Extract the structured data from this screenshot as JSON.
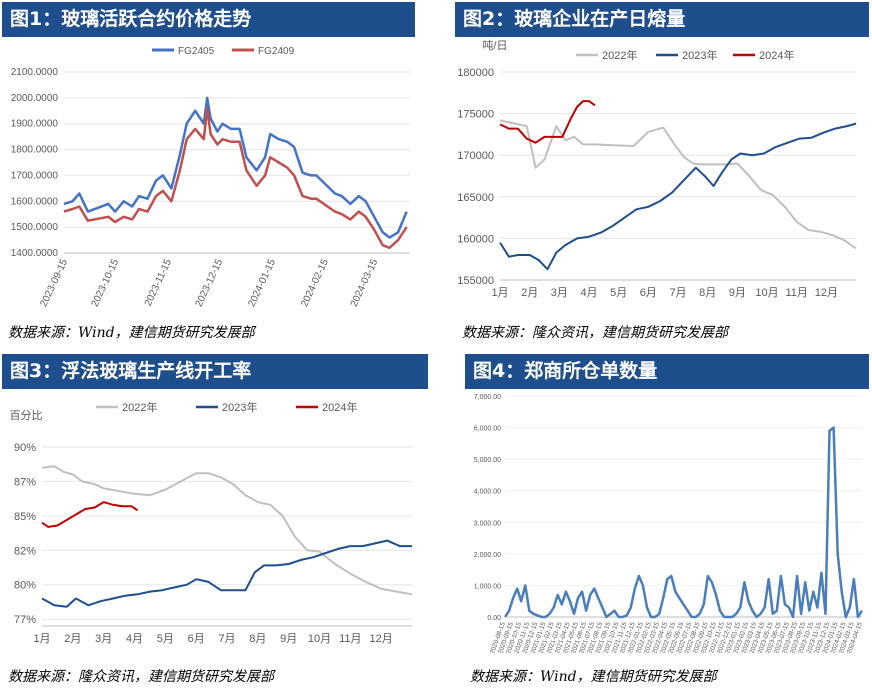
{
  "panels": {
    "p1": {
      "title": "图1：玻璃活跃合约价格走势",
      "source": "数据来源：Wind，建信期货研究发展部"
    },
    "p2": {
      "title": "图2：玻璃企业在产日熔量",
      "source": "数据来源：隆众资讯，建信期货研究发展部"
    },
    "p3": {
      "title": "图3：浮法玻璃生产线开工率",
      "source": "数据来源：隆众资讯，建信期货研究发展部"
    },
    "p4": {
      "title": "图4：郑商所仓单数量",
      "source": "数据来源：Wind，建信期货研究发展部"
    }
  },
  "chart_data": [
    {
      "type": "line",
      "title": "",
      "legend_position": "top",
      "x_tick_labels": [
        "2023-09-15",
        "2023-10-15",
        "2023-11-15",
        "2023-12-15",
        "2024-01-15",
        "2024-02-15",
        "2024-03-15"
      ],
      "ylim": [
        1400,
        2100
      ],
      "y_tick_labels": [
        "1400.0000",
        "1500.0000",
        "1600.0000",
        "1700.0000",
        "1800.0000",
        "1900.0000",
        "2000.0000",
        "2100.0000"
      ],
      "series": [
        {
          "name": "FG2405",
          "color": "#4472c4",
          "x": [
            "2023-09-13",
            "2023-09-18",
            "2023-09-22",
            "2023-09-27",
            "2023-10-09",
            "2023-10-13",
            "2023-10-18",
            "2023-10-23",
            "2023-10-27",
            "2023-11-01",
            "2023-11-06",
            "2023-11-10",
            "2023-11-15",
            "2023-11-20",
            "2023-11-24",
            "2023-11-29",
            "2023-12-04",
            "2023-12-06",
            "2023-12-08",
            "2023-12-12",
            "2023-12-15",
            "2023-12-20",
            "2023-12-25",
            "2023-12-29",
            "2024-01-04",
            "2024-01-09",
            "2024-01-12",
            "2024-01-17",
            "2024-01-22",
            "2024-01-26",
            "2024-01-31",
            "2024-02-05",
            "2024-02-08",
            "2024-02-19",
            "2024-02-23",
            "2024-02-28",
            "2024-03-04",
            "2024-03-08",
            "2024-03-13",
            "2024-03-18",
            "2024-03-22",
            "2024-03-27",
            "2024-04-01"
          ],
          "y": [
            1590,
            1600,
            1630,
            1560,
            1590,
            1560,
            1600,
            1580,
            1620,
            1610,
            1680,
            1700,
            1650,
            1780,
            1900,
            1950,
            1900,
            2000,
            1920,
            1870,
            1900,
            1880,
            1880,
            1770,
            1720,
            1770,
            1860,
            1840,
            1830,
            1810,
            1710,
            1700,
            1700,
            1630,
            1620,
            1590,
            1620,
            1600,
            1540,
            1480,
            1460,
            1480,
            1560
          ]
        },
        {
          "name": "FG2409",
          "color": "#c0504d",
          "x": [
            "2023-09-13",
            "2023-09-18",
            "2023-09-22",
            "2023-09-27",
            "2023-10-09",
            "2023-10-13",
            "2023-10-18",
            "2023-10-23",
            "2023-10-27",
            "2023-11-01",
            "2023-11-06",
            "2023-11-10",
            "2023-11-15",
            "2023-11-20",
            "2023-11-24",
            "2023-11-29",
            "2023-12-04",
            "2023-12-06",
            "2023-12-08",
            "2023-12-12",
            "2023-12-15",
            "2023-12-20",
            "2023-12-25",
            "2023-12-29",
            "2024-01-04",
            "2024-01-09",
            "2024-01-12",
            "2024-01-17",
            "2024-01-22",
            "2024-01-26",
            "2024-01-31",
            "2024-02-05",
            "2024-02-08",
            "2024-02-19",
            "2024-02-23",
            "2024-02-28",
            "2024-03-04",
            "2024-03-08",
            "2024-03-13",
            "2024-03-18",
            "2024-03-22",
            "2024-03-27",
            "2024-04-01"
          ],
          "y": [
            1560,
            1570,
            1580,
            1525,
            1540,
            1520,
            1540,
            1530,
            1570,
            1560,
            1620,
            1640,
            1600,
            1720,
            1840,
            1880,
            1840,
            1960,
            1860,
            1820,
            1840,
            1830,
            1830,
            1720,
            1660,
            1700,
            1770,
            1750,
            1730,
            1700,
            1620,
            1610,
            1610,
            1560,
            1550,
            1530,
            1560,
            1540,
            1490,
            1430,
            1420,
            1450,
            1500
          ]
        }
      ]
    },
    {
      "type": "line",
      "title": "",
      "unit_label": "吨/日",
      "legend_position": "top",
      "x_tick_labels": [
        "1月",
        "2月",
        "3月",
        "4月",
        "5月",
        "6月",
        "7月",
        "8月",
        "9月",
        "10月",
        "11月",
        "12月"
      ],
      "ylim": [
        155000,
        180000
      ],
      "y_tick_labels": [
        "155000",
        "160000",
        "165000",
        "170000",
        "175000",
        "180000"
      ],
      "series": [
        {
          "name": "2022年",
          "color": "#bfbfbf",
          "x": [
            1.0,
            1.5,
            1.9,
            2.2,
            2.5,
            2.9,
            3.2,
            3.5,
            3.8,
            4.2,
            4.8,
            5.5,
            6.0,
            6.5,
            6.9,
            7.2,
            7.5,
            7.8,
            8.2,
            8.6,
            9.0,
            9.4,
            9.8,
            10.2,
            10.6,
            11.0,
            11.4,
            11.8,
            12.2,
            12.6,
            13.0
          ],
          "y": [
            174200,
            173800,
            173500,
            168500,
            169500,
            173500,
            171800,
            172200,
            171300,
            171300,
            171200,
            171100,
            172800,
            173300,
            171200,
            169800,
            169000,
            168900,
            168900,
            168900,
            169000,
            167500,
            165800,
            165200,
            163800,
            162000,
            161000,
            160800,
            160400,
            159800,
            158800
          ]
        },
        {
          "name": "2023年",
          "color": "#1f4e8c",
          "x": [
            1.0,
            1.3,
            1.6,
            2.0,
            2.3,
            2.6,
            2.9,
            3.2,
            3.6,
            4.0,
            4.4,
            4.8,
            5.2,
            5.6,
            6.0,
            6.4,
            6.8,
            7.2,
            7.6,
            7.9,
            8.2,
            8.5,
            8.8,
            9.1,
            9.5,
            9.9,
            10.3,
            10.7,
            11.1,
            11.5,
            11.9,
            12.3,
            12.7,
            13.0
          ],
          "y": [
            159500,
            157800,
            158000,
            158000,
            157400,
            156300,
            158300,
            159200,
            160000,
            160200,
            160700,
            161500,
            162500,
            163500,
            163800,
            164500,
            165500,
            167000,
            168500,
            167500,
            166300,
            168000,
            169500,
            170200,
            170000,
            170200,
            171000,
            171500,
            172000,
            172100,
            172700,
            173200,
            173500,
            173800
          ]
        },
        {
          "name": "2024年",
          "color": "#c00000",
          "x": [
            1.0,
            1.3,
            1.6,
            1.9,
            2.2,
            2.5,
            2.8,
            3.1,
            3.4,
            3.6,
            3.8,
            4.0,
            4.2
          ],
          "y": [
            173700,
            173200,
            173200,
            172000,
            171500,
            172200,
            172200,
            172200,
            174500,
            175800,
            176500,
            176500,
            176000
          ]
        }
      ]
    },
    {
      "type": "line",
      "title": "",
      "unit_label": "百分比",
      "legend_position": "top",
      "x_tick_labels": [
        "1月",
        "2月",
        "3月",
        "4月",
        "5月",
        "6月",
        "7月",
        "8月",
        "9月",
        "10月",
        "11月",
        "12月"
      ],
      "ylim": [
        77,
        90
      ],
      "y_tick_labels": [
        "77%",
        "80%",
        "82%",
        "85%",
        "87%",
        "90%"
      ],
      "series": [
        {
          "name": "2022年",
          "color": "#bfbfbf",
          "x": [
            1.0,
            1.4,
            1.7,
            2.0,
            2.3,
            2.7,
            3.0,
            3.5,
            4.0,
            4.5,
            5.0,
            5.5,
            6.0,
            6.4,
            6.8,
            7.2,
            7.6,
            8.0,
            8.4,
            8.8,
            9.2,
            9.6,
            10.0,
            10.5,
            11.0,
            11.5,
            12.0,
            12.5,
            13.0
          ],
          "y": [
            88.5,
            88.6,
            88.2,
            88.0,
            87.5,
            87.3,
            87.0,
            86.8,
            86.6,
            86.5,
            86.9,
            87.5,
            88.1,
            88.1,
            87.8,
            87.3,
            86.5,
            86.0,
            85.8,
            85.0,
            83.5,
            82.5,
            82.4,
            81.5,
            80.8,
            80.2,
            79.7,
            79.5,
            79.3
          ]
        },
        {
          "name": "2023年",
          "color": "#1f4e8c",
          "x": [
            1.0,
            1.4,
            1.8,
            2.1,
            2.5,
            2.9,
            3.3,
            3.7,
            4.1,
            4.5,
            4.9,
            5.3,
            5.7,
            6.0,
            6.4,
            6.8,
            7.2,
            7.6,
            7.9,
            8.2,
            8.6,
            9.0,
            9.4,
            9.8,
            10.2,
            10.6,
            11.0,
            11.4,
            11.8,
            12.2,
            12.6,
            13.0
          ],
          "y": [
            79.0,
            78.5,
            78.4,
            79.0,
            78.5,
            78.8,
            79.0,
            79.2,
            79.3,
            79.5,
            79.6,
            79.8,
            80.0,
            80.4,
            80.2,
            79.6,
            79.6,
            79.6,
            80.9,
            81.4,
            81.4,
            81.5,
            81.8,
            82.0,
            82.3,
            82.6,
            82.8,
            82.8,
            83.0,
            83.2,
            82.8,
            82.8
          ]
        },
        {
          "name": "2024年",
          "color": "#c00000",
          "x": [
            1.0,
            1.2,
            1.5,
            1.8,
            2.1,
            2.4,
            2.7,
            3.0,
            3.3,
            3.6,
            3.9,
            4.1
          ],
          "y": [
            84.5,
            84.2,
            84.3,
            84.7,
            85.1,
            85.5,
            85.6,
            86.0,
            85.8,
            85.7,
            85.7,
            85.4
          ]
        }
      ]
    },
    {
      "type": "area",
      "title": "",
      "legend_position": "none",
      "x_tick_labels": [
        "2020-08-15",
        "2020-09-15",
        "2020-10-15",
        "2020-11-15",
        "2020-12-15",
        "2021-01-15",
        "2021-02-15",
        "2021-03-15",
        "2021-04-15",
        "2021-05-15",
        "2021-06-15",
        "2021-07-15",
        "2021-08-15",
        "2021-09-15",
        "2021-10-15",
        "2021-11-15",
        "2021-12-15",
        "2022-01-15",
        "2022-02-15",
        "2022-03-15",
        "2022-04-15",
        "2022-05-15",
        "2022-06-15",
        "2022-07-15",
        "2022-08-15",
        "2022-09-15",
        "2022-10-15",
        "2022-11-15",
        "2022-12-15",
        "2023-01-15",
        "2023-02-15",
        "2023-03-15",
        "2023-04-15",
        "2023-05-15",
        "2023-06-15",
        "2023-07-15",
        "2023-08-15",
        "2023-09-15",
        "2023-10-15",
        "2023-11-15",
        "2023-12-15",
        "2024-01-15",
        "2024-02-15",
        "2024-03-15",
        "2024-04-15"
      ],
      "ylim": [
        0,
        7000
      ],
      "y_tick_labels": [
        "0.00",
        "1,000.00",
        "2,000.00",
        "3,000.00",
        "4,000.00",
        "5,000.00",
        "6,000.00",
        "7,000.00"
      ],
      "series": [
        {
          "name": "",
          "color": "#4a7ebb",
          "x": [
            0,
            0.5,
            1,
            1.5,
            2,
            2.5,
            3,
            3.5,
            4,
            4.5,
            5,
            5.5,
            6,
            6.5,
            7,
            7.5,
            8,
            8.5,
            9,
            9.5,
            10,
            10.5,
            11,
            11.5,
            12,
            12.5,
            13,
            13.5,
            14,
            14.5,
            15,
            15.5,
            16,
            16.5,
            17,
            17.5,
            18,
            18.5,
            19,
            19.5,
            20,
            20.5,
            21,
            21.5,
            22,
            22.5,
            23,
            23.5,
            24,
            24.5,
            25,
            25.5,
            26,
            26.5,
            27,
            27.5,
            28,
            28.5,
            29,
            29.5,
            30,
            30.5,
            31,
            31.5,
            32,
            32.5,
            33,
            33.5,
            34,
            34.5,
            35,
            35.5,
            36,
            36.5,
            37,
            37.5,
            38,
            38.5,
            39,
            39.5,
            40,
            40.5,
            41,
            41.5,
            42,
            42.5,
            43,
            43.5,
            44
          ],
          "y": [
            0,
            200,
            600,
            900,
            500,
            1000,
            200,
            100,
            50,
            0,
            0,
            100,
            300,
            700,
            400,
            800,
            500,
            100,
            600,
            800,
            200,
            700,
            900,
            600,
            300,
            0,
            100,
            200,
            0,
            0,
            50,
            300,
            900,
            1300,
            1000,
            300,
            0,
            0,
            100,
            600,
            1200,
            1300,
            800,
            600,
            400,
            200,
            0,
            0,
            100,
            400,
            1300,
            1100,
            700,
            200,
            0,
            0,
            0,
            100,
            300,
            1100,
            500,
            200,
            0,
            100,
            300,
            1200,
            100,
            200,
            1300,
            400,
            300,
            0,
            1300,
            100,
            1100,
            200,
            800,
            300,
            1400,
            100,
            5900,
            6000,
            2000,
            800,
            0,
            300,
            1200,
            0,
            200
          ]
        }
      ]
    }
  ]
}
